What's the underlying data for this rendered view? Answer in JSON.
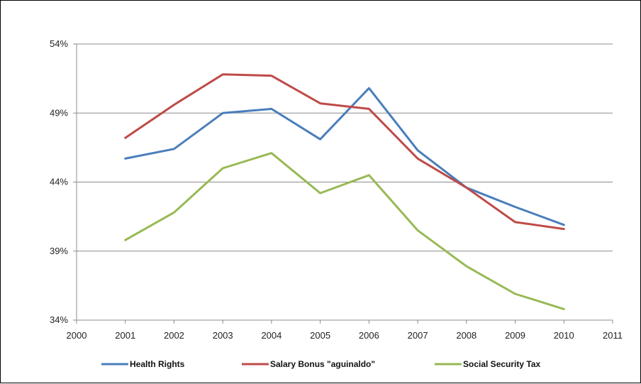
{
  "chart_data": {
    "type": "line",
    "title": "",
    "xlabel": "",
    "ylabel": "",
    "x_ticks": [
      "2000",
      "2001",
      "2002",
      "2003",
      "2004",
      "2005",
      "2006",
      "2007",
      "2008",
      "2009",
      "2010",
      "2011"
    ],
    "y_ticks": [
      "34%",
      "39%",
      "44%",
      "49%",
      "54%"
    ],
    "xlim": [
      2000,
      2011
    ],
    "ylim": [
      34,
      54
    ],
    "grid": "horizontal",
    "legend_position": "bottom",
    "x": [
      2001,
      2002,
      2003,
      2004,
      2005,
      2006,
      2007,
      2008,
      2009,
      2010
    ],
    "series": [
      {
        "name": "Health Rights",
        "color": "#4a7ebb",
        "values": [
          45.7,
          46.4,
          49.0,
          49.3,
          47.1,
          50.8,
          46.3,
          43.6,
          42.2,
          40.9
        ]
      },
      {
        "name": "Salary Bonus \"aguinaldo\"",
        "color": "#be4b48",
        "values": [
          47.2,
          49.6,
          51.8,
          51.7,
          49.7,
          49.3,
          45.7,
          43.6,
          41.1,
          40.6
        ]
      },
      {
        "name": "Social Security Tax",
        "color": "#98b954",
        "values": [
          39.8,
          41.8,
          45.0,
          46.1,
          43.2,
          44.5,
          40.5,
          37.9,
          35.9,
          34.8
        ]
      }
    ]
  }
}
